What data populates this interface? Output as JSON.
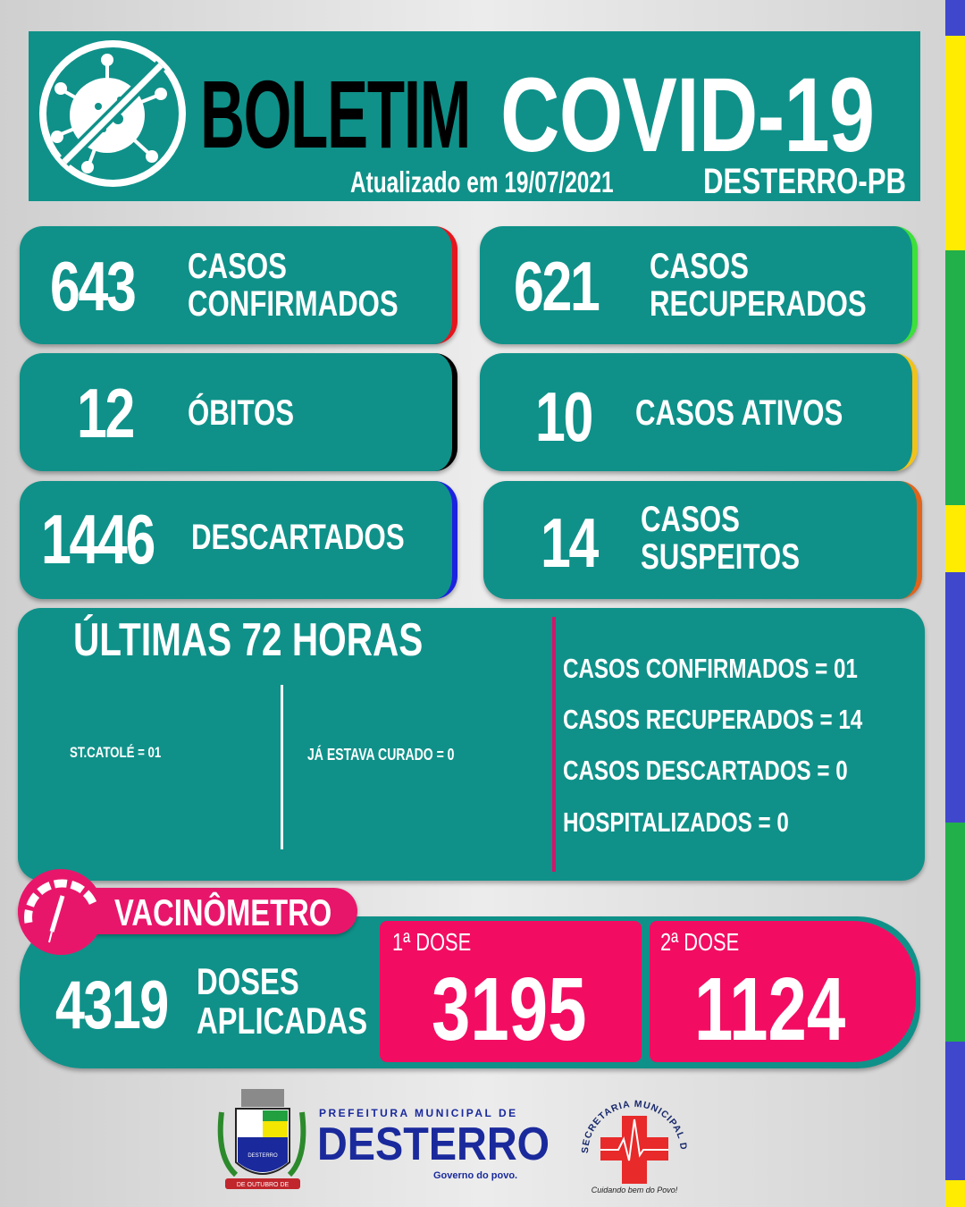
{
  "header": {
    "title_black": "BOLETIM",
    "title_white": "COVID-19",
    "updated": "Atualizado em 19/07/2021",
    "location": "DESTERRO-PB",
    "icon": "no-virus-icon"
  },
  "cards": [
    {
      "value": "643",
      "label1": "CASOS",
      "label2": "CONFIRMADOS",
      "accent": "#e8141c"
    },
    {
      "value": "621",
      "label1": "CASOS",
      "label2": "RECUPERADOS",
      "accent": "#3ee03a"
    },
    {
      "value": "12",
      "label1": "ÓBITOS",
      "label2": "",
      "accent": "#000000"
    },
    {
      "value": "10",
      "label1": "CASOS ATIVOS",
      "label2": "",
      "accent": "#f2c21c"
    },
    {
      "value": "1446",
      "label1": "DESCARTADOS",
      "label2": "",
      "accent": "#1c22e0"
    },
    {
      "value": "14",
      "label1": "CASOS",
      "label2": "SUSPEITOS",
      "accent": "#e0641c"
    }
  ],
  "last72": {
    "title": "ÚLTIMAS 72 HORAS",
    "left_note": "ST.CATOLÉ = 01",
    "mid_note": "JÁ ESTAVA CURADO = 0",
    "items": [
      "CASOS CONFIRMADOS = 01",
      "CASOS RECUPERADOS = 14",
      "CASOS DESCARTADOS = 0",
      "HOSPITALIZADOS = 0"
    ]
  },
  "vaccine": {
    "badge": "VACINÔMETRO",
    "total": "4319",
    "total_label1": "DOSES",
    "total_label2": "APLICADAS",
    "dose1_label": "1ª DOSE",
    "dose1_value": "3195",
    "dose2_label": "2ª DOSE",
    "dose2_value": "1124",
    "icon": "syringe-gauge-icon"
  },
  "footer": {
    "pref_line": "PREFEITURA MUNICIPAL DE",
    "pref_name": "DESTERRO",
    "pref_slogan": "Governo do povo.",
    "crest_text": "DESTERRO",
    "crest_ribbon": "DE OUTUBRO DE",
    "sec_ring": "SECRETARIA MUNICIPAL DE SAÚDE",
    "sec_slogan": "Cuidando bem do Povo!"
  },
  "colors": {
    "teal": "#0f9189",
    "pink": "#f20d62",
    "stripe": [
      "#3f48cc",
      "#ffec00",
      "#22b04a",
      "#ffec00",
      "#3f48cc",
      "#22b04a",
      "#3f48cc",
      "#ffec00"
    ]
  }
}
